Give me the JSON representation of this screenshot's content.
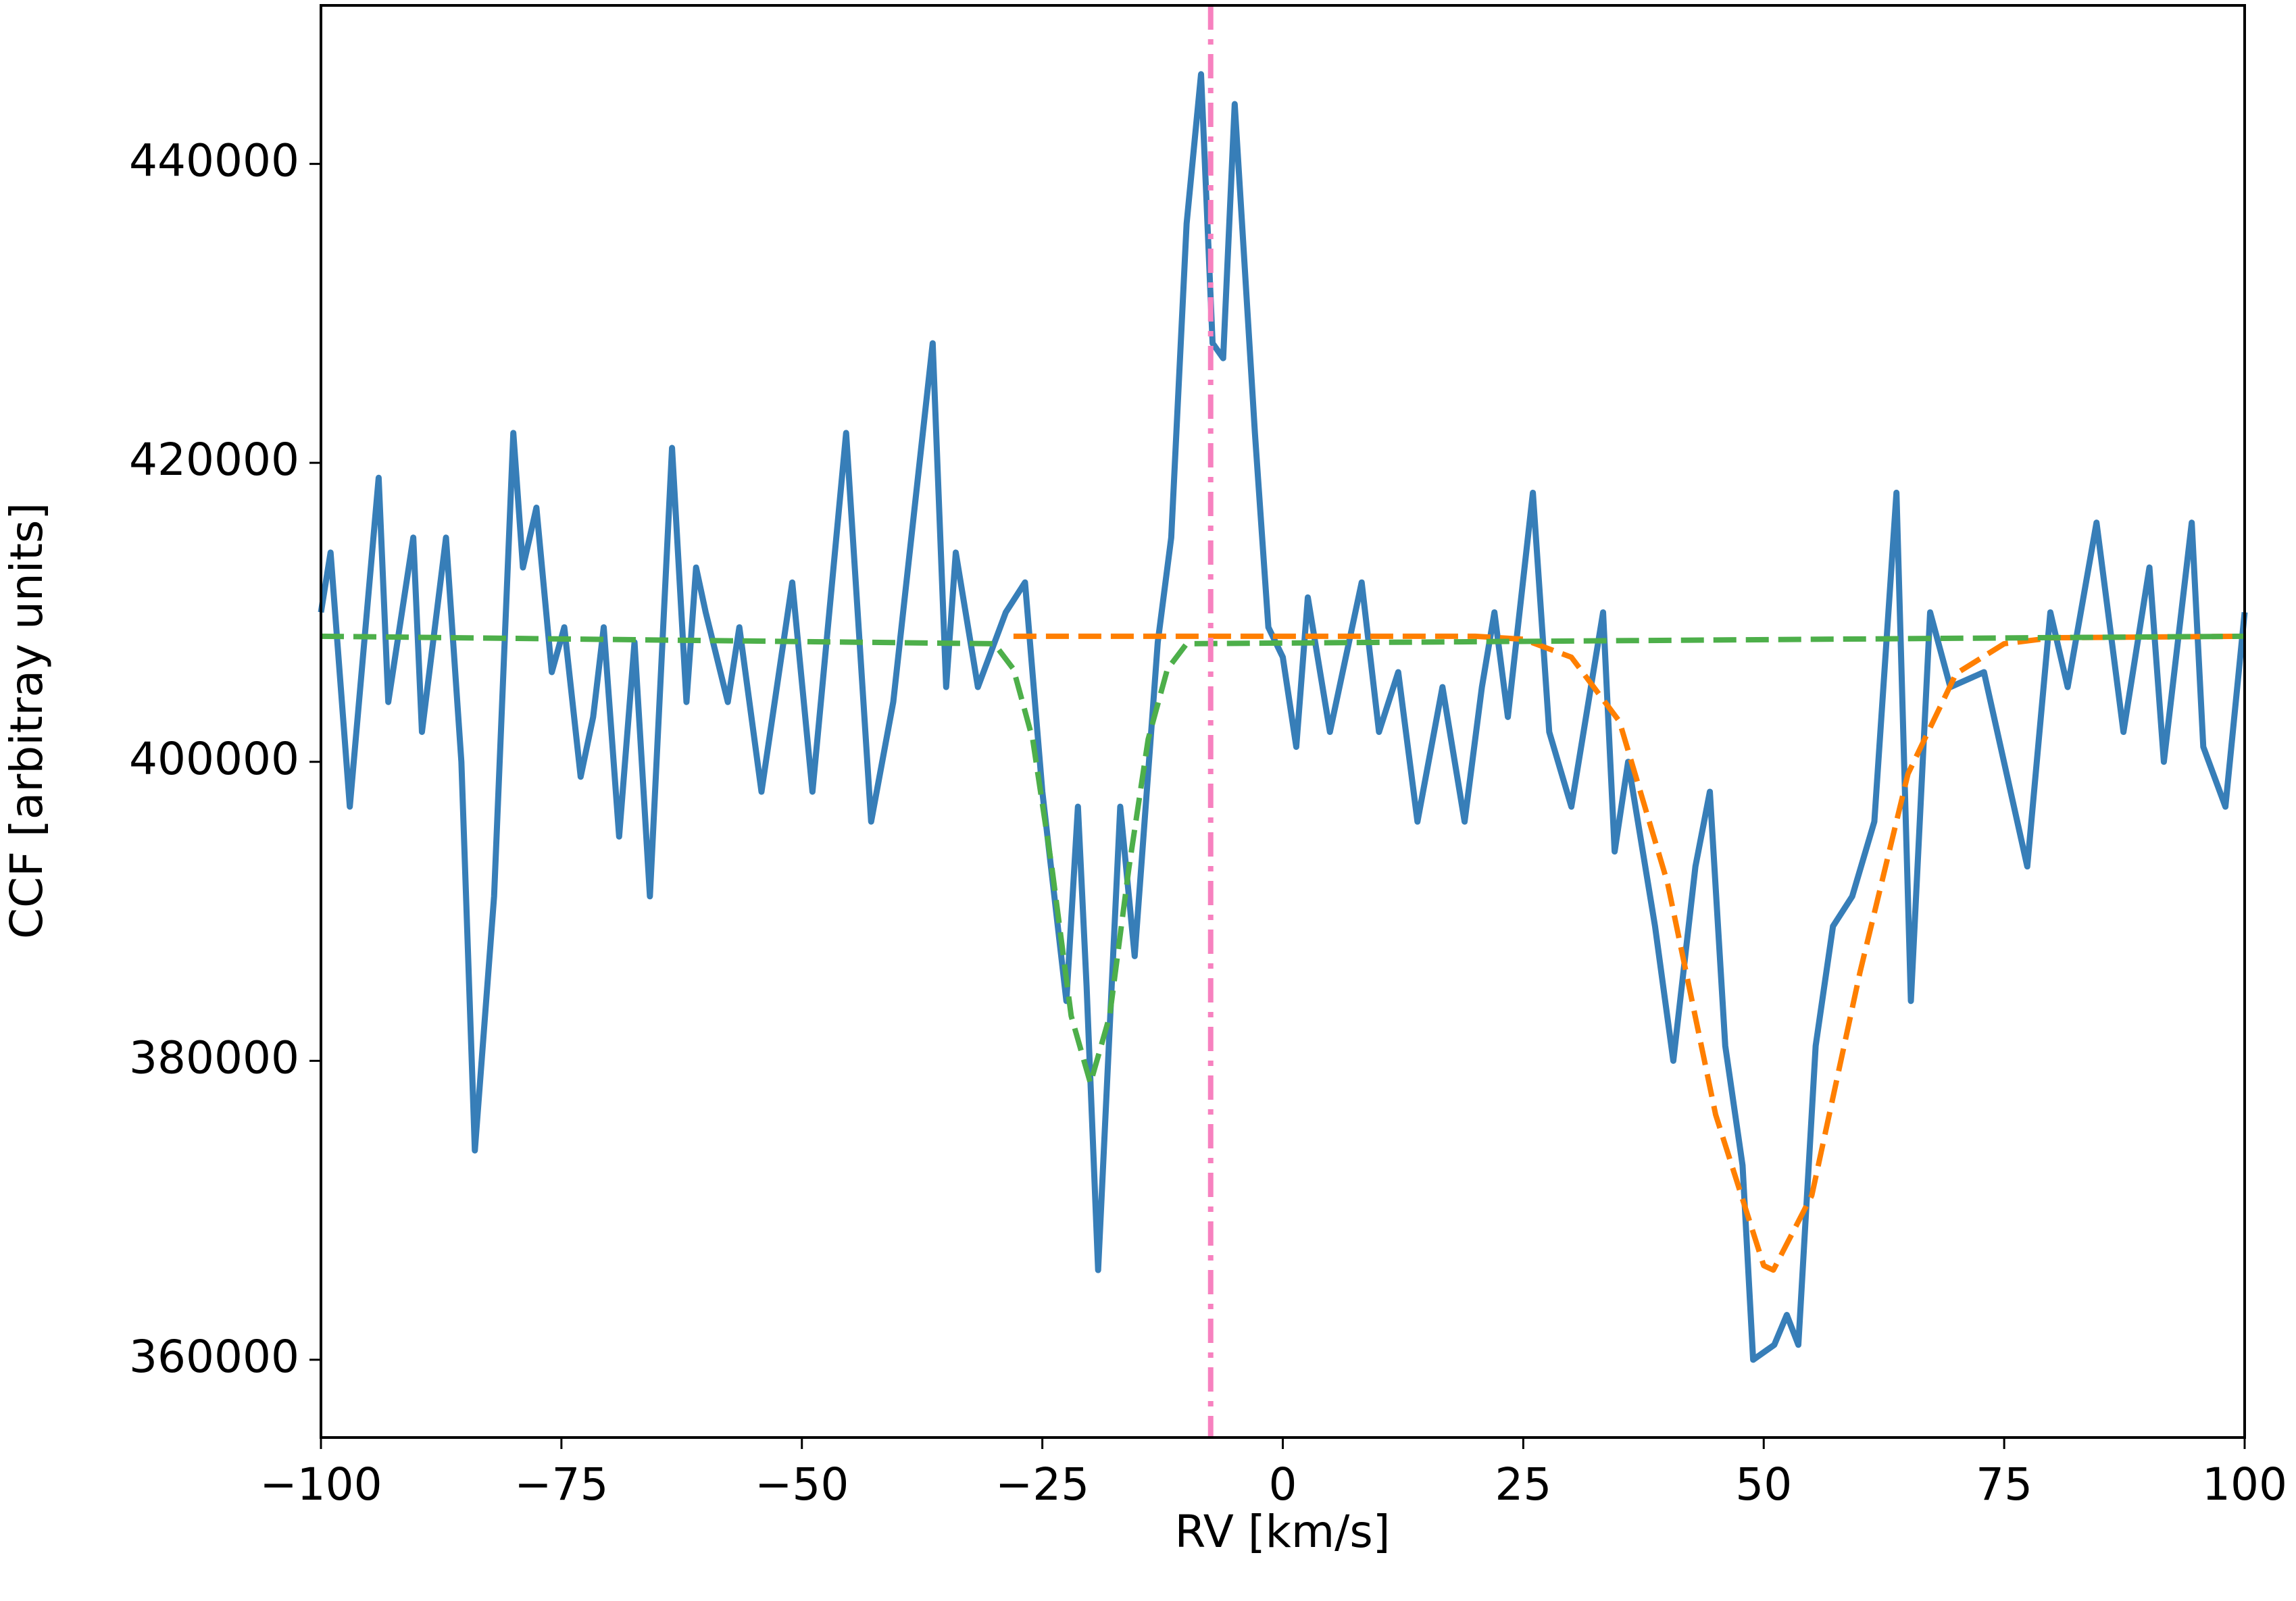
{
  "chart_data": {
    "type": "line",
    "xlabel": "RV [km/s]",
    "ylabel": "CCF [arbitray units]",
    "xlim": [
      -100,
      100
    ],
    "ylim": [
      354800,
      450600
    ],
    "xticks": [
      {
        "value": -100,
        "label": "−100"
      },
      {
        "value": -75,
        "label": "−75"
      },
      {
        "value": -50,
        "label": "−50"
      },
      {
        "value": -25,
        "label": "−25"
      },
      0,
      25,
      50,
      75,
      100
    ],
    "yticks": [
      360000,
      380000,
      400000,
      420000,
      440000
    ],
    "vline": {
      "x": -7.5,
      "color": "#f781bf",
      "style": "dashdot"
    },
    "series": [
      {
        "color": "#377eb8",
        "style": "solid",
        "x": [
          -100,
          -99,
          -97,
          -94,
          -93,
          -90.4,
          -89.5,
          -87,
          -85.4,
          -84,
          -82,
          -80,
          -79,
          -77.6,
          -76,
          -74.7,
          -73,
          -71.7,
          -70.6,
          -69,
          -67.4,
          -65.8,
          -63.5,
          -62,
          -61,
          -60,
          -57.7,
          -56.5,
          -54.2,
          -51,
          -48.9,
          -45.4,
          -42.8,
          -40.5,
          -36.4,
          -35,
          -34,
          -31.7,
          -28.8,
          -26.8,
          -25,
          -22.5,
          -21.3,
          -20.4,
          -19.2,
          -16.9,
          -15.4,
          -13,
          -11.6,
          -10,
          -8.5,
          -7.3,
          -6.2,
          -5,
          -2.9,
          -1.5,
          0,
          1.4,
          2.6,
          4.9,
          8.2,
          10,
          12,
          14,
          16.6,
          18.9,
          20.7,
          22,
          23.4,
          26,
          27.7,
          30,
          33.3,
          34.5,
          35.9,
          38.7,
          40.6,
          42.9,
          44.4,
          46,
          47.8,
          48.9,
          51.1,
          52.4,
          53.6,
          55.4,
          57.2,
          59.2,
          61.5,
          63.8,
          65.3,
          67.3,
          69.4,
          72.9,
          77.4,
          79.8,
          81.6,
          84.6,
          87.4,
          90.1,
          91.6,
          94.5,
          95.7,
          98,
          100
        ],
        "values": [
          410000,
          414000,
          397000,
          419000,
          404000,
          415000,
          402000,
          415000,
          400000,
          374000,
          391000,
          422000,
          413000,
          417000,
          406000,
          409000,
          399000,
          403000,
          409000,
          395000,
          408000,
          391000,
          421000,
          404000,
          413000,
          410000,
          404000,
          409000,
          398000,
          412000,
          398000,
          422000,
          396000,
          404000,
          428000,
          405000,
          414000,
          405000,
          410000,
          412000,
          398000,
          384000,
          397000,
          385000,
          366000,
          397000,
          387000,
          408000,
          415000,
          436000,
          446000,
          428000,
          427000,
          444000,
          422000,
          409000,
          407000,
          401000,
          411000,
          402000,
          412000,
          402000,
          406000,
          396000,
          405000,
          396000,
          405000,
          410000,
          403000,
          418000,
          402000,
          397000,
          410000,
          394000,
          400000,
          389000,
          380000,
          393000,
          398000,
          381000,
          373000,
          360000,
          361000,
          363000,
          361000,
          381000,
          389000,
          391000,
          396000,
          418000,
          384000,
          410000,
          405000,
          406000,
          393000,
          410000,
          405000,
          416000,
          402000,
          413000,
          400000,
          416000,
          401000,
          397000,
          410000
        ]
      },
      {
        "color": "#ff7f00",
        "style": "dashed",
        "x": [
          -28,
          20,
          25,
          30,
          35,
          40,
          45,
          50,
          51,
          55,
          60,
          65,
          70,
          75,
          80,
          100
        ],
        "values": [
          408400,
          408400,
          408200,
          407000,
          402700,
          391900,
          376400,
          366300,
          366000,
          371000,
          385900,
          399200,
          405900,
          407900,
          408300,
          408400
        ]
      },
      {
        "color": "#4daf4a",
        "style": "dashed",
        "x": [
          -100,
          -30,
          -28,
          -26,
          -24,
          -22,
          -20,
          -18,
          -16,
          -14,
          -12,
          -10,
          100
        ],
        "values": [
          408400,
          407900,
          406200,
          401500,
          392900,
          383000,
          378500,
          383000,
          392900,
          401500,
          406200,
          407900,
          408400
        ]
      }
    ]
  }
}
